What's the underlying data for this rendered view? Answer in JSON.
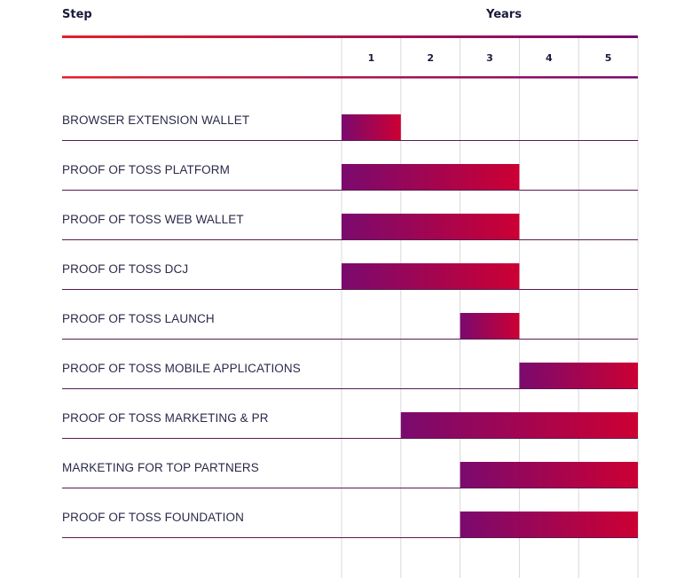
{
  "header": {
    "step_label": "Step",
    "years_label": "Years"
  },
  "colors": {
    "gradient_start": "#7a0a6e",
    "gradient_end": "#cc0033",
    "top_rule_start": "#e3202a",
    "top_rule_end": "#7a0a6e",
    "row_divider": "#5a1a52",
    "grid": "#d8d8d8"
  },
  "chart_data": {
    "type": "gantt",
    "xlabel": "Years",
    "ylabel": "Step",
    "years": [
      "1",
      "2",
      "3",
      "4",
      "5"
    ],
    "xlim": [
      0,
      5
    ],
    "tasks": [
      {
        "name": "BROWSER EXTENSION WALLET",
        "start": 0,
        "end": 1
      },
      {
        "name": "PROOF OF TOSS PLATFORM",
        "start": 0,
        "end": 3
      },
      {
        "name": "PROOF OF TOSS WEB WALLET",
        "start": 0,
        "end": 3
      },
      {
        "name": "PROOF OF TOSS DCJ",
        "start": 0,
        "end": 3
      },
      {
        "name": "PROOF OF TOSS LAUNCH",
        "start": 2,
        "end": 3
      },
      {
        "name": "PROOF OF TOSS MOBILE APPLICATIONS",
        "start": 3,
        "end": 5
      },
      {
        "name": "PROOF OF TOSS MARKETING & PR",
        "start": 1,
        "end": 5
      },
      {
        "name": "MARKETING FOR TOP PARTNERS",
        "start": 2,
        "end": 5
      },
      {
        "name": "PROOF OF TOSS FOUNDATION",
        "start": 2,
        "end": 5
      }
    ]
  }
}
